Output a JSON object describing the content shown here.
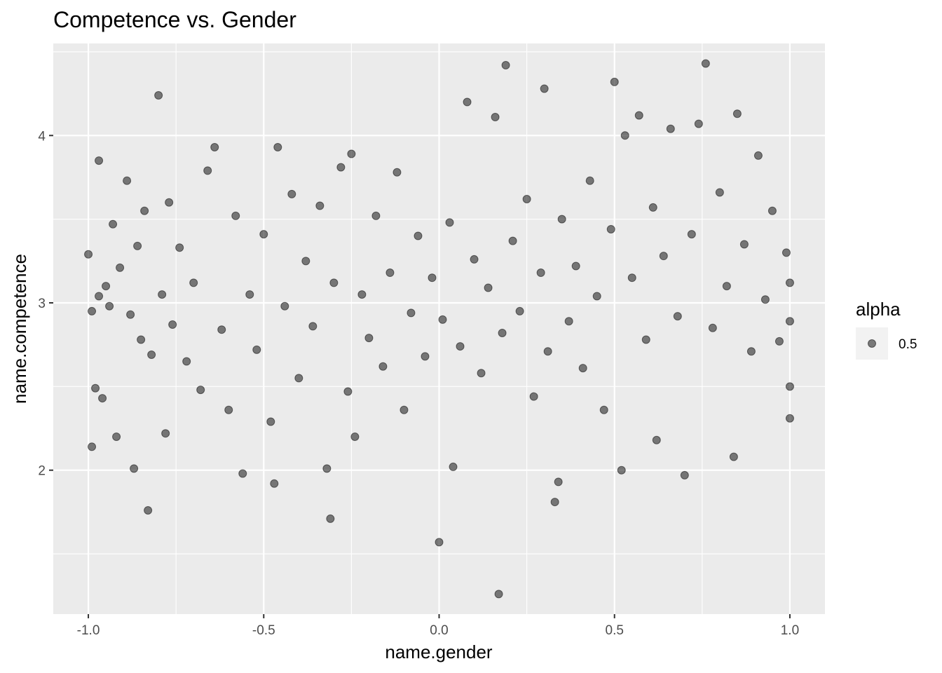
{
  "chart_data": {
    "type": "scatter",
    "title": "Competence vs. Gender",
    "xlabel": "name.gender",
    "ylabel": "name.competence",
    "xlim": [
      -1.1,
      1.1
    ],
    "ylim": [
      1.14,
      4.55
    ],
    "x_ticks": [
      -1.0,
      -0.5,
      0.0,
      0.5,
      1.0
    ],
    "x_tick_labels": [
      "-1.0",
      "-0.5",
      "0.0",
      "0.5",
      "1.0"
    ],
    "x_minor_ticks": [
      -0.75,
      -0.25,
      0.25,
      0.75
    ],
    "y_ticks": [
      2,
      3,
      4
    ],
    "y_tick_labels": [
      "2",
      "3",
      "4"
    ],
    "y_minor_ticks": [
      1.5,
      2.5,
      3.5,
      4.5
    ],
    "grid": true,
    "legend": {
      "title": "alpha",
      "label": "0.5",
      "placement": "right"
    },
    "point_color": "#000000",
    "point_alpha": 0.5,
    "panel_color": "#ebebeb",
    "series": [
      {
        "points": [
          [
            -1.0,
            3.29
          ],
          [
            -0.99,
            2.95
          ],
          [
            -0.98,
            2.49
          ],
          [
            -0.97,
            3.04
          ],
          [
            -0.99,
            2.14
          ],
          [
            -0.96,
            2.43
          ],
          [
            -0.95,
            3.1
          ],
          [
            -0.97,
            3.85
          ],
          [
            -0.94,
            2.98
          ],
          [
            -0.93,
            3.47
          ],
          [
            -0.92,
            2.2
          ],
          [
            -0.91,
            3.21
          ],
          [
            -0.89,
            3.73
          ],
          [
            -0.88,
            2.93
          ],
          [
            -0.87,
            2.01
          ],
          [
            -0.86,
            3.34
          ],
          [
            -0.85,
            2.78
          ],
          [
            -0.84,
            3.55
          ],
          [
            -0.83,
            1.76
          ],
          [
            -0.82,
            2.69
          ],
          [
            -0.8,
            4.24
          ],
          [
            -0.79,
            3.05
          ],
          [
            -0.78,
            2.22
          ],
          [
            -0.77,
            3.6
          ],
          [
            -0.76,
            2.87
          ],
          [
            -0.74,
            3.33
          ],
          [
            -0.72,
            2.65
          ],
          [
            -0.7,
            3.12
          ],
          [
            -0.68,
            2.48
          ],
          [
            -0.66,
            3.79
          ],
          [
            -0.64,
            3.93
          ],
          [
            -0.62,
            2.84
          ],
          [
            -0.6,
            2.36
          ],
          [
            -0.58,
            3.52
          ],
          [
            -0.56,
            1.98
          ],
          [
            -0.54,
            3.05
          ],
          [
            -0.52,
            2.72
          ],
          [
            -0.5,
            3.41
          ],
          [
            -0.48,
            2.29
          ],
          [
            -0.47,
            1.92
          ],
          [
            -0.46,
            3.93
          ],
          [
            -0.44,
            2.98
          ],
          [
            -0.42,
            3.65
          ],
          [
            -0.4,
            2.55
          ],
          [
            -0.38,
            3.25
          ],
          [
            -0.36,
            2.86
          ],
          [
            -0.34,
            3.58
          ],
          [
            -0.32,
            2.01
          ],
          [
            -0.31,
            1.71
          ],
          [
            -0.3,
            3.12
          ],
          [
            -0.28,
            3.81
          ],
          [
            -0.26,
            2.47
          ],
          [
            -0.25,
            3.89
          ],
          [
            -0.24,
            2.2
          ],
          [
            -0.22,
            3.05
          ],
          [
            -0.2,
            2.79
          ],
          [
            -0.18,
            3.52
          ],
          [
            -0.16,
            2.62
          ],
          [
            -0.14,
            3.18
          ],
          [
            -0.12,
            3.78
          ],
          [
            -0.1,
            2.36
          ],
          [
            -0.08,
            2.94
          ],
          [
            -0.06,
            3.4
          ],
          [
            -0.04,
            2.68
          ],
          [
            -0.02,
            3.15
          ],
          [
            0.0,
            1.57
          ],
          [
            0.01,
            2.9
          ],
          [
            0.03,
            3.48
          ],
          [
            0.04,
            2.02
          ],
          [
            0.06,
            2.74
          ],
          [
            0.08,
            4.2
          ],
          [
            0.1,
            3.26
          ],
          [
            0.12,
            2.58
          ],
          [
            0.14,
            3.09
          ],
          [
            0.16,
            4.11
          ],
          [
            0.17,
            1.26
          ],
          [
            0.18,
            2.82
          ],
          [
            0.19,
            4.42
          ],
          [
            0.21,
            3.37
          ],
          [
            0.23,
            2.95
          ],
          [
            0.25,
            3.62
          ],
          [
            0.27,
            2.44
          ],
          [
            0.29,
            3.18
          ],
          [
            0.3,
            4.28
          ],
          [
            0.31,
            2.71
          ],
          [
            0.33,
            1.81
          ],
          [
            0.34,
            1.93
          ],
          [
            0.35,
            3.5
          ],
          [
            0.37,
            2.89
          ],
          [
            0.39,
            3.22
          ],
          [
            0.41,
            2.61
          ],
          [
            0.43,
            3.73
          ],
          [
            0.45,
            3.04
          ],
          [
            0.47,
            2.36
          ],
          [
            0.49,
            3.44
          ],
          [
            0.5,
            4.32
          ],
          [
            0.52,
            2.0
          ],
          [
            0.53,
            4.0
          ],
          [
            0.55,
            3.15
          ],
          [
            0.57,
            4.12
          ],
          [
            0.59,
            2.78
          ],
          [
            0.61,
            3.57
          ],
          [
            0.62,
            2.18
          ],
          [
            0.64,
            3.28
          ],
          [
            0.66,
            4.04
          ],
          [
            0.68,
            2.92
          ],
          [
            0.7,
            1.97
          ],
          [
            0.72,
            3.41
          ],
          [
            0.74,
            4.07
          ],
          [
            0.76,
            4.43
          ],
          [
            0.78,
            2.85
          ],
          [
            0.8,
            3.66
          ],
          [
            0.82,
            3.1
          ],
          [
            0.84,
            2.08
          ],
          [
            0.85,
            4.13
          ],
          [
            0.87,
            3.35
          ],
          [
            0.89,
            2.71
          ],
          [
            0.91,
            3.88
          ],
          [
            0.93,
            3.02
          ],
          [
            0.95,
            3.55
          ],
          [
            0.97,
            2.77
          ],
          [
            0.99,
            3.3
          ],
          [
            1.0,
            2.31
          ],
          [
            1.0,
            2.5
          ],
          [
            1.0,
            3.12
          ],
          [
            1.0,
            2.89
          ]
        ]
      }
    ]
  }
}
